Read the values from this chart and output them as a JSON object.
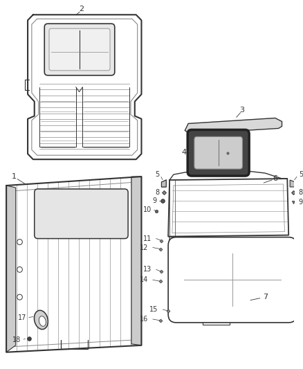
{
  "bg_color": "#ffffff",
  "dc": "#333333",
  "gc": "#888888",
  "lc": "#555555",
  "fig_w": 4.38,
  "fig_h": 5.33,
  "dpi": 100
}
